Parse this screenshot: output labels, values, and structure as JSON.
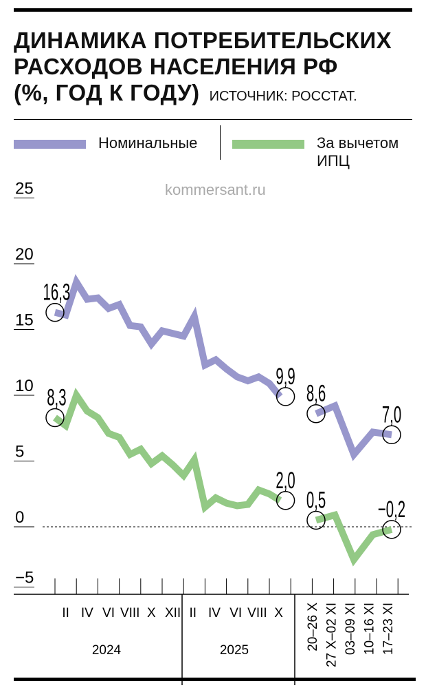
{
  "title": {
    "line1": "ДИНАМИКА ПОТРЕБИТЕЛЬСКИХ",
    "line2": "РАСХОДОВ НАСЕЛЕНИЯ РФ",
    "line3": "(%, ГОД К ГОДУ)",
    "source": "ИСТОЧНИК: РОССТАТ."
  },
  "watermark": "kommersant.ru",
  "colors": {
    "nominal": "#9897cc",
    "real": "#93c985"
  },
  "chart_data": {
    "type": "line",
    "ylim": [
      -5,
      25
    ],
    "yticks": [
      "25",
      "20",
      "15",
      "10",
      "5",
      "0",
      "−5"
    ],
    "ytick_values": [
      25,
      20,
      15,
      10,
      5,
      0,
      -5
    ],
    "month_labels": [
      "II",
      "IV",
      "VI",
      "VIII",
      "X",
      "XII",
      "II",
      "IV",
      "VI",
      "VIII",
      "X"
    ],
    "year_labels": [
      "2024",
      "2025"
    ],
    "week_labels": [
      "20–26 X",
      "27 X–02 XI",
      "03–09 XI",
      "10–16 XI",
      "17–23 XI"
    ],
    "series": [
      {
        "name": "Номинальные",
        "monthly": [
          16.3,
          16.1,
          18.6,
          17.3,
          17.4,
          16.6,
          16.9,
          15.3,
          15.2,
          13.9,
          14.9,
          14.7,
          14.5,
          16.0,
          12.3,
          12.7,
          12.0,
          11.4,
          11.1,
          11.4,
          10.9,
          9.9
        ],
        "weekly": [
          8.6,
          9.2,
          5.5,
          7.2,
          7.0
        ],
        "labels": [
          "16,3",
          "9,9",
          "8,6",
          "7,0"
        ]
      },
      {
        "name": "За вычетом ИПЦ",
        "monthly": [
          8.3,
          7.7,
          10.0,
          8.8,
          8.3,
          7.1,
          6.8,
          5.5,
          5.9,
          4.8,
          5.4,
          4.7,
          3.9,
          5.1,
          1.5,
          2.2,
          1.8,
          1.6,
          1.7,
          2.8,
          2.5,
          2.0
        ],
        "weekly": [
          0.5,
          0.9,
          -2.5,
          -0.6,
          -0.2
        ],
        "labels": [
          "8,3",
          "2,0",
          "0,5",
          "−0,2"
        ]
      }
    ]
  }
}
